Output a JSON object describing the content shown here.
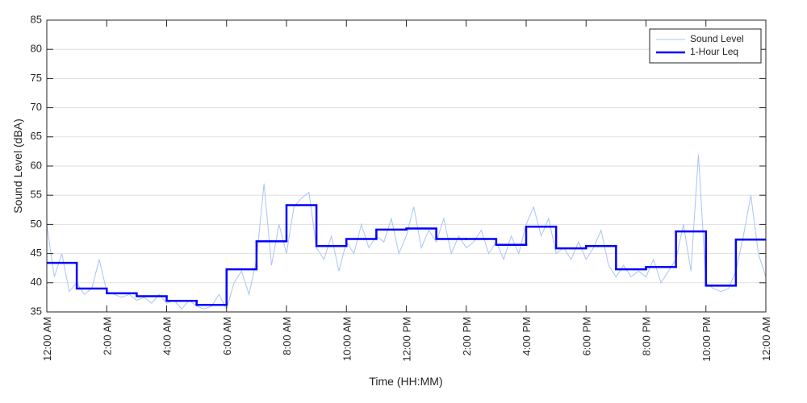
{
  "chart_data": {
    "type": "line",
    "xlabel": "Time (HH:MM)",
    "ylabel": "Sound Level (dBA)",
    "xlim": [
      0,
      24
    ],
    "ylim": [
      35,
      85
    ],
    "xticks": [
      {
        "value": 0,
        "label": "12:00 AM"
      },
      {
        "value": 2,
        "label": "2:00 AM"
      },
      {
        "value": 4,
        "label": "4:00 AM"
      },
      {
        "value": 6,
        "label": "6:00 AM"
      },
      {
        "value": 8,
        "label": "8:00 AM"
      },
      {
        "value": 10,
        "label": "10:00 AM"
      },
      {
        "value": 12,
        "label": "12:00 PM"
      },
      {
        "value": 14,
        "label": "2:00 PM"
      },
      {
        "value": 16,
        "label": "4:00 PM"
      },
      {
        "value": 18,
        "label": "6:00 PM"
      },
      {
        "value": 20,
        "label": "8:00 PM"
      },
      {
        "value": 22,
        "label": "10:00 PM"
      },
      {
        "value": 24,
        "label": "12:00 AM"
      }
    ],
    "yticks": [
      35,
      40,
      45,
      50,
      55,
      60,
      65,
      70,
      75,
      80,
      85
    ],
    "grid": true,
    "legend": "upper right",
    "series": [
      {
        "name": "Sound Level",
        "color": "#a9c4f5",
        "linewidth": 1,
        "drawstyle": "default",
        "x": [
          0,
          0.25,
          0.5,
          0.75,
          1,
          1.25,
          1.5,
          1.75,
          2,
          2.25,
          2.5,
          2.75,
          3,
          3.25,
          3.5,
          3.75,
          4,
          4.25,
          4.5,
          4.75,
          5,
          5.25,
          5.5,
          5.75,
          6,
          6.25,
          6.5,
          6.75,
          7,
          7.25,
          7.5,
          7.75,
          8,
          8.25,
          8.5,
          8.75,
          9,
          9.25,
          9.5,
          9.75,
          10,
          10.25,
          10.5,
          10.75,
          11,
          11.25,
          11.5,
          11.75,
          12,
          12.25,
          12.5,
          12.75,
          13,
          13.25,
          13.5,
          13.75,
          14,
          14.25,
          14.5,
          14.75,
          15,
          15.25,
          15.5,
          15.75,
          16,
          16.25,
          16.5,
          16.75,
          17,
          17.25,
          17.5,
          17.75,
          18,
          18.25,
          18.5,
          18.75,
          19,
          19.25,
          19.5,
          19.75,
          20,
          20.25,
          20.5,
          20.75,
          21,
          21.25,
          21.5,
          21.75,
          22,
          22.25,
          22.5,
          22.75,
          23,
          23.25,
          23.5,
          23.75,
          24
        ],
        "values": [
          50,
          41,
          45,
          38.5,
          40,
          38,
          39,
          44,
          38.5,
          38,
          37.5,
          38,
          37,
          37.5,
          36.5,
          38,
          36.5,
          37,
          35.5,
          37,
          36,
          35.5,
          36,
          38,
          35.5,
          40,
          42,
          38,
          44,
          57,
          43,
          50,
          45,
          53,
          54.5,
          55.5,
          46,
          44,
          48,
          42,
          47,
          45,
          50,
          46,
          48,
          47,
          51,
          45,
          48,
          53,
          46,
          49,
          47,
          51,
          45,
          48,
          46,
          47,
          49,
          45,
          47,
          44,
          48,
          45,
          50,
          53,
          48,
          51,
          45,
          46,
          44,
          47,
          44,
          46,
          49,
          43,
          41,
          43,
          41,
          42,
          41,
          44,
          40,
          42,
          44,
          50,
          42,
          62,
          40,
          39,
          38.5,
          39,
          42,
          48,
          55,
          45,
          41
        ]
      },
      {
        "name": "1-Hour Leq",
        "color": "#0000ff",
        "linewidth": 2.5,
        "drawstyle": "steps-post",
        "x": [
          0,
          1,
          2,
          3,
          4,
          5,
          6,
          7,
          8,
          9,
          10,
          11,
          12,
          13,
          14,
          15,
          16,
          17,
          18,
          19,
          20,
          21,
          22,
          23
        ],
        "values": [
          43.4,
          39.0,
          38.2,
          37.7,
          36.9,
          36.2,
          42.3,
          47.1,
          53.3,
          46.3,
          47.5,
          49.1,
          49.3,
          47.5,
          47.5,
          46.5,
          49.6,
          45.9,
          46.3,
          42.3,
          42.7,
          48.8,
          39.5,
          47.4
        ]
      }
    ]
  }
}
